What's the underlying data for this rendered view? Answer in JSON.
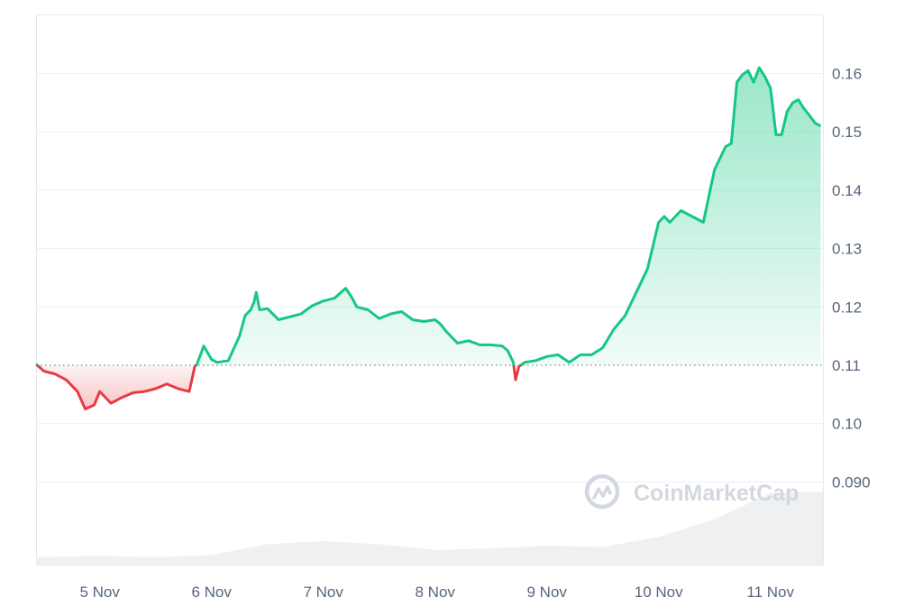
{
  "chart_data": {
    "type": "area",
    "baseline": 0.11,
    "ylim": [
      0.081,
      0.171
    ],
    "y_ticks": [
      {
        "value": 0.16,
        "label": "0.16"
      },
      {
        "value": 0.15,
        "label": "0.15"
      },
      {
        "value": 0.14,
        "label": "0.14"
      },
      {
        "value": 0.13,
        "label": "0.13"
      },
      {
        "value": 0.12,
        "label": "0.12"
      },
      {
        "value": 0.11,
        "label": "0.11"
      },
      {
        "value": 0.1,
        "label": "0.10"
      },
      {
        "value": 0.09,
        "label": "0.090"
      }
    ],
    "x_ticks": [
      {
        "t": 1.0,
        "label": "5 Nov"
      },
      {
        "t": 2.0,
        "label": "6 Nov"
      },
      {
        "t": 3.0,
        "label": "7 Nov"
      },
      {
        "t": 4.0,
        "label": "8 Nov"
      },
      {
        "t": 5.0,
        "label": "9 Nov"
      },
      {
        "t": 6.0,
        "label": "10 Nov"
      },
      {
        "t": 7.0,
        "label": "11 Nov"
      }
    ],
    "x_range": [
      0.43,
      7.47
    ],
    "price_series": {
      "t": [
        0.43,
        0.5,
        0.6,
        0.7,
        0.8,
        0.87,
        0.95,
        1.0,
        1.05,
        1.1,
        1.2,
        1.3,
        1.4,
        1.5,
        1.6,
        1.7,
        1.8,
        1.82,
        1.85,
        1.87,
        1.93,
        2.0,
        2.05,
        2.15,
        2.25,
        2.3,
        2.35,
        2.38,
        2.4,
        2.43,
        2.5,
        2.6,
        2.7,
        2.8,
        2.9,
        3.0,
        3.1,
        3.2,
        3.25,
        3.3,
        3.4,
        3.5,
        3.6,
        3.7,
        3.8,
        3.9,
        4.0,
        4.05,
        4.1,
        4.2,
        4.3,
        4.4,
        4.5,
        4.6,
        4.65,
        4.7,
        4.72,
        4.75,
        4.8,
        4.9,
        5.0,
        5.1,
        5.2,
        5.3,
        5.4,
        5.5,
        5.6,
        5.7,
        5.8,
        5.85,
        5.9,
        6.0,
        6.05,
        6.1,
        6.2,
        6.3,
        6.4,
        6.5,
        6.55,
        6.6,
        6.65,
        6.7,
        6.75,
        6.8,
        6.85,
        6.9,
        6.95,
        7.0,
        7.02,
        7.05,
        7.1,
        7.15,
        7.2,
        7.25,
        7.3,
        7.35,
        7.4,
        7.45
      ],
      "price": [
        0.1102,
        0.109,
        0.1085,
        0.1075,
        0.1055,
        0.1025,
        0.1032,
        0.1055,
        0.1045,
        0.1035,
        0.1045,
        0.1053,
        0.1055,
        0.106,
        0.1068,
        0.106,
        0.1055,
        0.1072,
        0.1098,
        0.1102,
        0.1133,
        0.111,
        0.1105,
        0.1108,
        0.115,
        0.1185,
        0.1195,
        0.1208,
        0.1225,
        0.1195,
        0.1197,
        0.1178,
        0.1183,
        0.1188,
        0.1202,
        0.121,
        0.1215,
        0.1232,
        0.1218,
        0.12,
        0.1195,
        0.118,
        0.1188,
        0.1192,
        0.1178,
        0.1175,
        0.1178,
        0.117,
        0.1158,
        0.1138,
        0.1142,
        0.1135,
        0.1135,
        0.1133,
        0.1125,
        0.1105,
        0.1075,
        0.1098,
        0.1105,
        0.1108,
        0.1115,
        0.1118,
        0.1105,
        0.1118,
        0.1118,
        0.113,
        0.1162,
        0.1185,
        0.1225,
        0.1245,
        0.1265,
        0.1345,
        0.1355,
        0.1345,
        0.1365,
        0.1355,
        0.1345,
        0.1435,
        0.1455,
        0.1475,
        0.148,
        0.1585,
        0.1598,
        0.1605,
        0.1585,
        0.161,
        0.1595,
        0.1575,
        0.1545,
        0.1495,
        0.1495,
        0.1535,
        0.155,
        0.1555,
        0.154,
        0.1528,
        0.1515,
        0.151
      ]
    },
    "volume_series": {
      "t": [
        0.43,
        1.0,
        1.5,
        2.0,
        2.5,
        3.0,
        3.5,
        4.0,
        4.5,
        5.0,
        5.5,
        6.0,
        6.5,
        6.75,
        7.0,
        7.47
      ],
      "level": [
        0.1,
        0.12,
        0.1,
        0.13,
        0.28,
        0.32,
        0.28,
        0.2,
        0.22,
        0.26,
        0.24,
        0.38,
        0.62,
        0.8,
        0.98,
        1.0
      ]
    },
    "colors": {
      "up_line": "#16c784",
      "down_line": "#ea3943",
      "up_fill": "#16c784",
      "down_fill": "#ea3943",
      "volume_fill": "#eef0f2",
      "baseline_dots": "#7a8291"
    }
  },
  "watermark": {
    "text": "CoinMarketCap"
  }
}
